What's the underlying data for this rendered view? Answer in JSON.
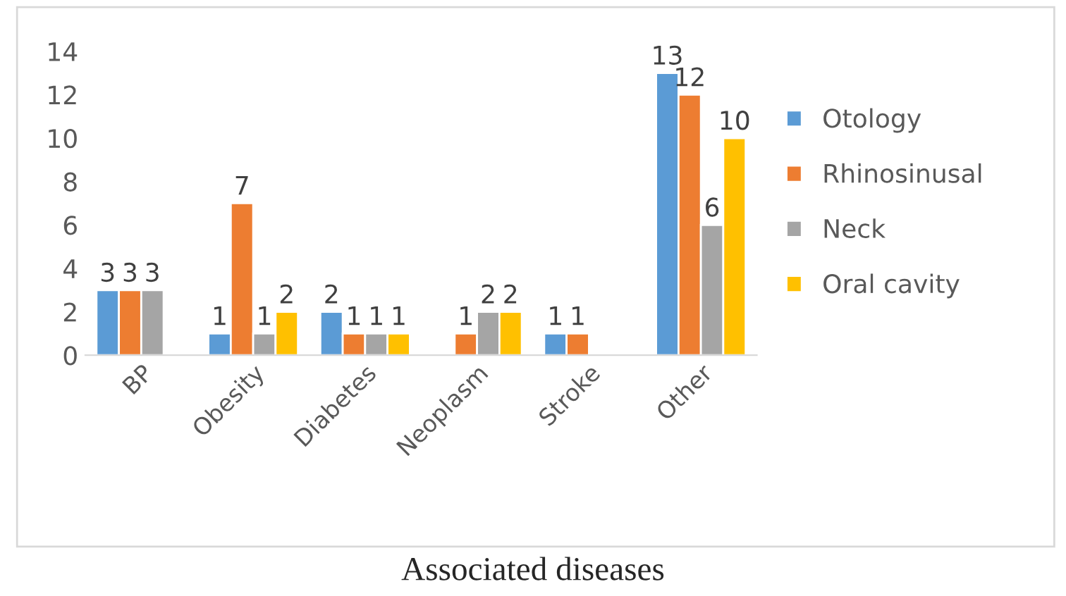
{
  "chart_data": {
    "type": "bar",
    "categories": [
      "BP",
      "Obesity",
      "Diabetes",
      "Neoplasm",
      "Stroke",
      "Other"
    ],
    "series": [
      {
        "name": "Otology",
        "color": "#5b9bd5",
        "values": [
          3,
          1,
          2,
          null,
          1,
          13
        ]
      },
      {
        "name": "Rhinosinusal",
        "color": "#ed7d31",
        "values": [
          3,
          7,
          1,
          1,
          1,
          12
        ]
      },
      {
        "name": "Neck",
        "color": "#a5a5a5",
        "values": [
          3,
          1,
          1,
          2,
          null,
          6
        ]
      },
      {
        "name": "Oral cavity",
        "color": "#ffc000",
        "values": [
          null,
          2,
          1,
          2,
          null,
          10
        ]
      }
    ],
    "ylim": [
      0,
      14
    ],
    "yticks": [
      0,
      2,
      4,
      6,
      8,
      10,
      12,
      14
    ],
    "data_labels": true,
    "grid": false,
    "legend": "right",
    "annotations": [
      "Associated diseases"
    ]
  }
}
